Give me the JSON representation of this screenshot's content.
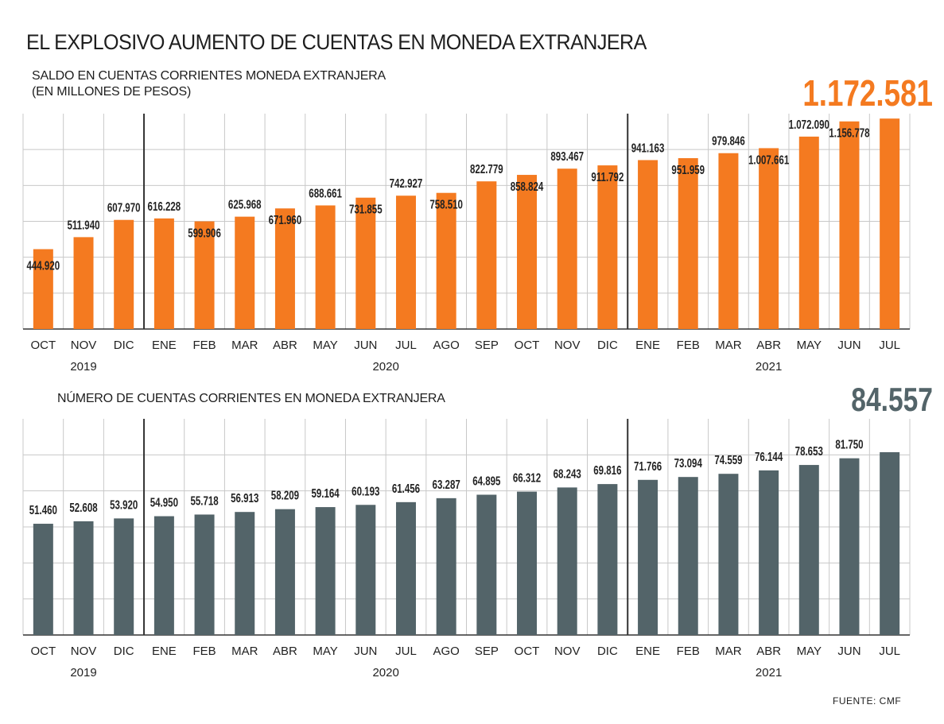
{
  "title": "EL EXPLOSIVO AUMENTO DE CUENTAS EN MONEDA EXTRANJERA",
  "source": "FUENTE: CMF",
  "colors": {
    "orange": "#f47a20",
    "slate": "#536469",
    "grid": "#c8c8c8",
    "axis": "#333333"
  },
  "chart_data": [
    {
      "type": "bar",
      "title": "SALDO EN CUENTAS CORRIENTES MONEDA EXTRANJERA",
      "subtitle": "(EN MILLONES DE PESOS)",
      "categories": [
        "OCT",
        "NOV",
        "DIC",
        "ENE",
        "FEB",
        "MAR",
        "ABR",
        "MAY",
        "JUN",
        "JUL",
        "AGO",
        "SEP",
        "OCT",
        "NOV",
        "DIC",
        "ENE",
        "FEB",
        "MAR",
        "ABR",
        "MAY",
        "JUN",
        "JUL"
      ],
      "years": [
        {
          "label": "2019",
          "start": 0,
          "end": 2
        },
        {
          "label": "2020",
          "start": 3,
          "end": 14
        },
        {
          "label": "2021",
          "start": 15,
          "end": 21
        }
      ],
      "values": [
        444920,
        511940,
        607970,
        616228,
        599906,
        625968,
        671960,
        688661,
        731855,
        742927,
        758510,
        822779,
        858824,
        893467,
        911792,
        941163,
        951959,
        979846,
        1007661,
        1072090,
        1156778,
        1172581
      ],
      "value_labels": [
        "444.920",
        "511.940",
        "607.970",
        "616.228",
        "599.906",
        "625.968",
        "671.960",
        "688.661",
        "731.855",
        "742.927",
        "758.510",
        "822.779",
        "858.824",
        "893.467",
        "911.792",
        "941.163",
        "951.959",
        "979.846",
        "1.007.661",
        "1.072.090",
        "1.156.778",
        "1.172.581"
      ],
      "ylim": [
        0,
        1200000
      ],
      "grid": true,
      "color": "#f47a20",
      "highlight_color": "#f47a20"
    },
    {
      "type": "bar",
      "title": "NÚMERO DE CUENTAS CORRIENTES EN MONEDA EXTRANJERA",
      "categories": [
        "OCT",
        "NOV",
        "DIC",
        "ENE",
        "FEB",
        "MAR",
        "ABR",
        "MAY",
        "JUN",
        "JUL",
        "AGO",
        "SEP",
        "OCT",
        "NOV",
        "DIC",
        "ENE",
        "FEB",
        "MAR",
        "ABR",
        "MAY",
        "JUN",
        "JUL"
      ],
      "years": [
        {
          "label": "2019",
          "start": 0,
          "end": 2
        },
        {
          "label": "2020",
          "start": 3,
          "end": 14
        },
        {
          "label": "2021",
          "start": 15,
          "end": 21
        }
      ],
      "values": [
        51460,
        52608,
        53920,
        54950,
        55718,
        56913,
        58209,
        59164,
        60193,
        61456,
        63287,
        64895,
        66312,
        68243,
        69816,
        71766,
        73094,
        74559,
        76144,
        78653,
        81750,
        84557
      ],
      "value_labels": [
        "51.460",
        "52.608",
        "53.920",
        "54.950",
        "55.718",
        "56.913",
        "58.209",
        "59.164",
        "60.193",
        "61.456",
        "63.287",
        "64.895",
        "66.312",
        "68.243",
        "69.816",
        "71.766",
        "73.094",
        "74.559",
        "76.144",
        "78.653",
        "81.750",
        "84.557"
      ],
      "ylim": [
        0,
        100000
      ],
      "grid": true,
      "color": "#536469",
      "highlight_color": "#536469"
    }
  ]
}
